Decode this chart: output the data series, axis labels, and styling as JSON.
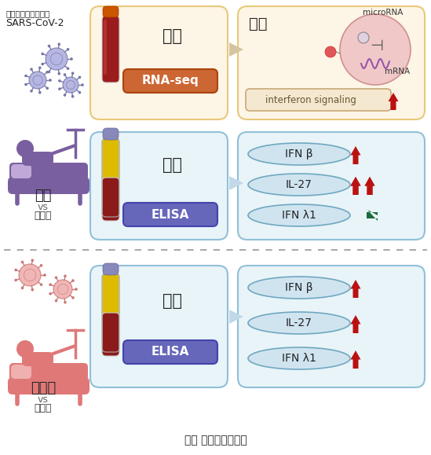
{
  "bg_color": "#ffffff",
  "title": "図： 本研究のまとめ",
  "top_left_title1": "新型コロナウイルス",
  "top_left_title2": "SARS-CoV-2",
  "severe_label": "重症",
  "severe_vs": "vs",
  "severe_kenjo": "健常人",
  "moderate_label": "中等症",
  "moderate_vs": "vs",
  "moderate_kenjo": "健常人",
  "zenketsu": "全血",
  "rnaseq": "RNA-seq",
  "kekkyu": "血球",
  "micro_rna": "microRNA",
  "mrna": "mRNA",
  "interferon": "interferon signaling",
  "kessho": "血漿",
  "elisa": "ELISA",
  "ifn_b": "IFN β",
  "il27": "IL-27",
  "ifn_l1": "IFN λ1",
  "panel1_box_color": "#fdf5e6",
  "panel1_border_color": "#e8c87a",
  "plasma_box_color": "#e8f4f8",
  "plasma_border_color": "#90c0d8",
  "elisa_box_color": "#6666bb",
  "rnaseq_box_color": "#cc6633",
  "interferon_box_color": "#f5e8d0",
  "interferon_border_color": "#c8a878",
  "red_arrow_color": "#bb1111",
  "green_arrow_color": "#1a6b3c",
  "dashed_line_color": "#aaaaaa",
  "purple_color": "#7a5fa0",
  "pink_color": "#e07878",
  "virus_purple": "#8888cc",
  "virus_pink": "#dd8888"
}
